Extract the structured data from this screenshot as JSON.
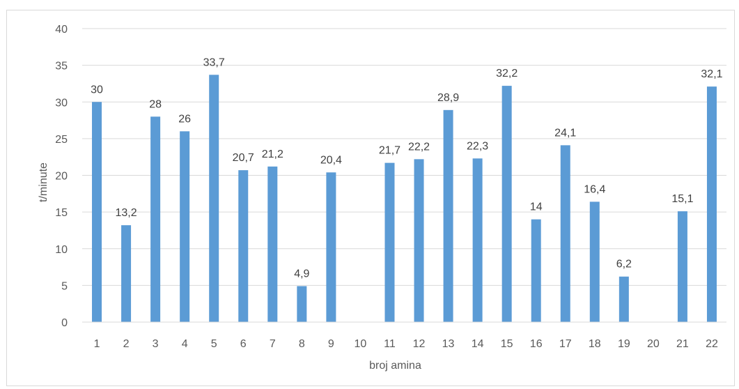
{
  "chart_data": {
    "type": "bar",
    "title": "",
    "xlabel": "broj amina",
    "ylabel": "t/minute",
    "ylim": [
      0,
      40
    ],
    "yticks": [
      0,
      5,
      10,
      15,
      20,
      25,
      30,
      35,
      40
    ],
    "grid": true,
    "legend": "none",
    "bar_color": "#5b9bd5",
    "categories": [
      "1",
      "2",
      "3",
      "4",
      "5",
      "6",
      "7",
      "8",
      "9",
      "10",
      "11",
      "12",
      "13",
      "14",
      "15",
      "16",
      "17",
      "18",
      "19",
      "20",
      "21",
      "22"
    ],
    "values": [
      30,
      13.2,
      28,
      26,
      33.7,
      20.7,
      21.2,
      4.9,
      20.4,
      null,
      21.7,
      22.2,
      28.9,
      22.3,
      32.2,
      14,
      24.1,
      16.4,
      6.2,
      null,
      15.1,
      32.1
    ],
    "data_labels": [
      "30",
      "13,2",
      "28",
      "26",
      "33,7",
      "20,7",
      "21,2",
      "4,9",
      "20,4",
      "",
      "21,7",
      "22,2",
      "28,9",
      "22,3",
      "32,2",
      "14",
      "24,1",
      "16,4",
      "6,2",
      "",
      "15,1",
      "32,1"
    ]
  }
}
